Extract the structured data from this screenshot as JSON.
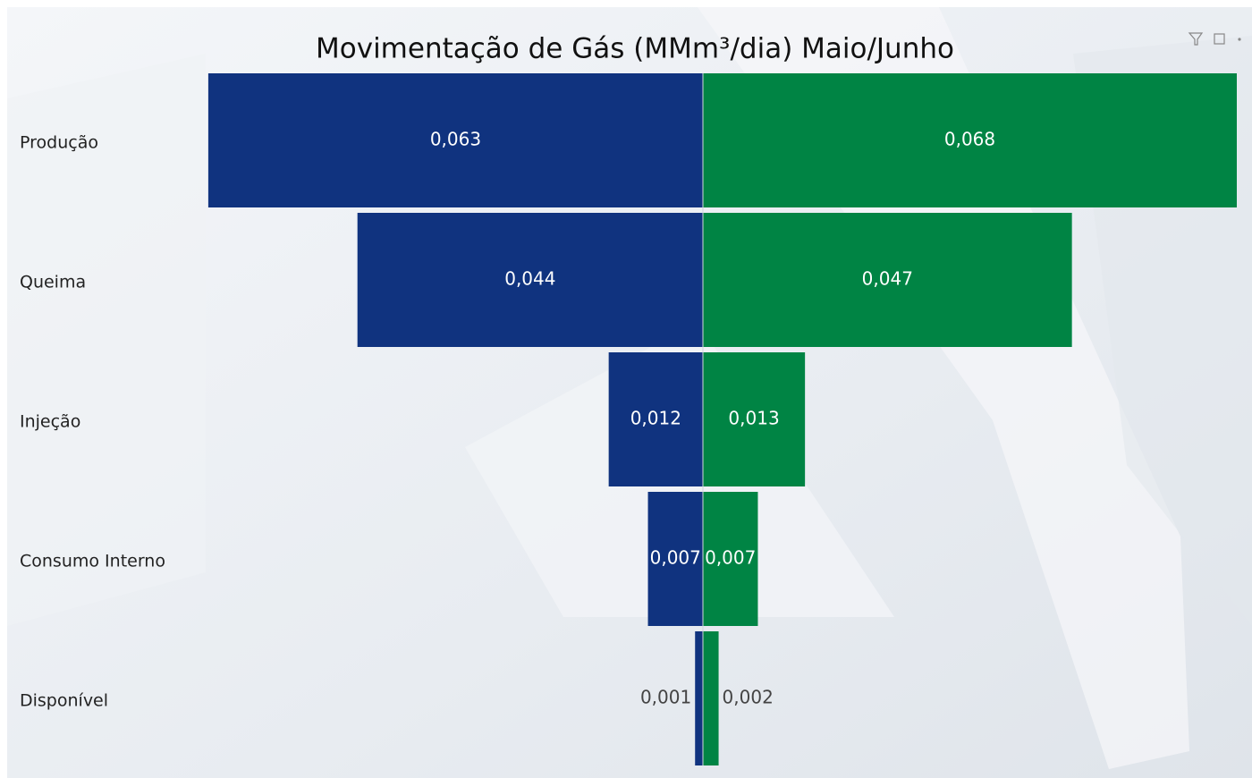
{
  "chart_data": {
    "type": "butterfly",
    "title": "Movimentação de Gás (MMm³/dia) Maio/Junho",
    "categories": [
      "Produção",
      "Queima",
      "Injeção",
      "Consumo Interno",
      "Disponível"
    ],
    "series": [
      {
        "color": "#10337f",
        "values": [
          0.063,
          0.044,
          0.012,
          0.007,
          0.001
        ],
        "value_labels": [
          "0,063",
          "0,044",
          "0,012",
          "0,007",
          "0,001"
        ]
      },
      {
        "color": "#008444",
        "values": [
          0.068,
          0.047,
          0.013,
          0.007,
          0.002
        ],
        "value_labels": [
          "0,068",
          "0,047",
          "0,013",
          "0,007",
          "0,002"
        ]
      }
    ]
  }
}
